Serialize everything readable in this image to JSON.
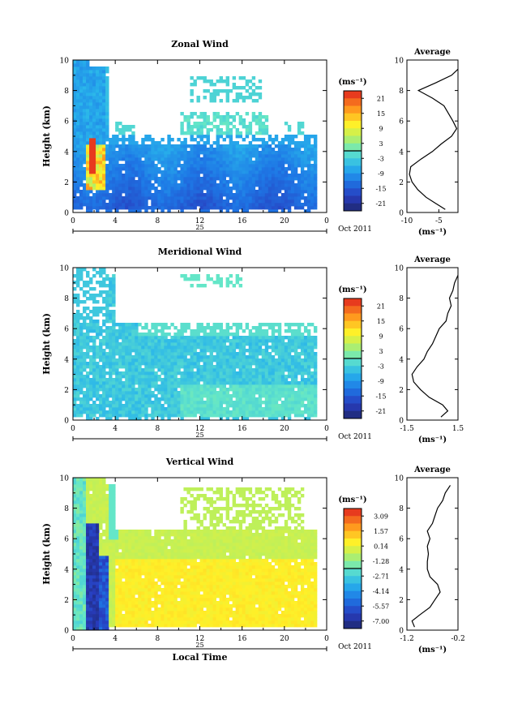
{
  "chart_data": [
    {
      "type": "heatmap",
      "title": "Zonal Wind",
      "xlabel": "",
      "ylabel": "Height (km)",
      "xlim": [
        0,
        24
      ],
      "ylim": [
        0,
        10
      ],
      "x_ticks": [
        "0",
        "4",
        "8",
        "12",
        "16",
        "20",
        "0"
      ],
      "y_ticks": [
        "0",
        "2",
        "4",
        "6",
        "8",
        "10"
      ],
      "date_day": "25",
      "date_label": "Oct 2011",
      "colorbar": {
        "unit": "(ms⁻¹)",
        "labels": [
          "21",
          "15",
          "9",
          "3",
          "-3",
          "-9",
          "-15",
          "-21"
        ],
        "min": -24,
        "max": 24
      },
      "profile": {
        "title": "Average",
        "xlabel": "(ms⁻¹)",
        "xlim": [
          -10,
          -2
        ],
        "x_ticks": [
          "-10",
          "-5"
        ],
        "y_ticks": [
          "0",
          "2",
          "4",
          "6",
          "8",
          "10"
        ],
        "heights": [
          0.2,
          0.6,
          1.0,
          1.5,
          2.0,
          2.5,
          3.0,
          3.5,
          4.0,
          4.5,
          5.0,
          5.5,
          6.0,
          6.5,
          7.0,
          7.5,
          8.0,
          8.5,
          9.0,
          9.4
        ],
        "values": [
          -4.0,
          -5.5,
          -7.0,
          -8.3,
          -9.2,
          -9.6,
          -9.4,
          -7.8,
          -6.0,
          -4.6,
          -3.0,
          -2.2,
          -2.8,
          -3.5,
          -4.2,
          -6.0,
          -8.2,
          -5.5,
          -3.0,
          -2.0
        ]
      }
    },
    {
      "type": "heatmap",
      "title": "Meridional Wind",
      "xlabel": "",
      "ylabel": "Height (km)",
      "xlim": [
        0,
        24
      ],
      "ylim": [
        0,
        10
      ],
      "x_ticks": [
        "0",
        "4",
        "8",
        "12",
        "16",
        "20",
        "0"
      ],
      "y_ticks": [
        "0",
        "2",
        "4",
        "6",
        "8",
        "10"
      ],
      "date_day": "25",
      "date_label": "Oct 2011",
      "colorbar": {
        "unit": "(ms⁻¹)",
        "labels": [
          "21",
          "15",
          "9",
          "3",
          "-3",
          "-9",
          "-15",
          "-21"
        ],
        "min": -24,
        "max": 24
      },
      "profile": {
        "title": "Average",
        "xlabel": "(ms⁻¹)",
        "xlim": [
          -1.5,
          1.5
        ],
        "x_ticks": [
          "-1.5",
          "1.5"
        ],
        "y_ticks": [
          "0",
          "2",
          "4",
          "6",
          "8",
          "10"
        ],
        "heights": [
          0.2,
          0.6,
          1.0,
          1.5,
          2.0,
          2.5,
          3.0,
          3.5,
          4.0,
          4.5,
          5.0,
          5.5,
          6.0,
          6.5,
          7.0,
          7.5,
          8.0,
          8.5,
          9.0,
          9.5
        ],
        "values": [
          0.5,
          0.9,
          0.6,
          -0.2,
          -0.7,
          -1.1,
          -1.2,
          -0.9,
          -0.5,
          -0.3,
          0.0,
          0.2,
          0.4,
          0.8,
          0.9,
          1.1,
          1.0,
          1.2,
          1.3,
          1.5
        ]
      }
    },
    {
      "type": "heatmap",
      "title": "Vertical Wind",
      "xlabel": "Local Time",
      "ylabel": "Height (km)",
      "xlim": [
        0,
        24
      ],
      "ylim": [
        0,
        10
      ],
      "x_ticks": [
        "0",
        "4",
        "8",
        "12",
        "16",
        "20",
        "0"
      ],
      "y_ticks": [
        "0",
        "2",
        "4",
        "6",
        "8",
        "10"
      ],
      "date_day": "25",
      "date_label": "Oct 2011",
      "colorbar": {
        "unit": "(ms⁻¹)",
        "labels": [
          "3.09",
          "1.57",
          "0.14",
          "-1.28",
          "-2.71",
          "-4.14",
          "-5.57",
          "-7.00"
        ],
        "min": -7.7,
        "max": 3.8
      },
      "profile": {
        "title": "Average",
        "xlabel": "(ms⁻¹)",
        "xlim": [
          -1.2,
          -0.2
        ],
        "x_ticks": [
          "-1.2",
          "-0.2"
        ],
        "y_ticks": [
          "0",
          "2",
          "4",
          "6",
          "8",
          "10"
        ],
        "heights": [
          0.2,
          0.6,
          1.0,
          1.5,
          2.0,
          2.5,
          3.0,
          3.5,
          4.0,
          4.5,
          5.0,
          5.5,
          6.0,
          6.5,
          7.0,
          7.5,
          8.0,
          8.5,
          9.0,
          9.5
        ],
        "values": [
          -1.05,
          -1.1,
          -0.95,
          -0.75,
          -0.65,
          -0.55,
          -0.6,
          -0.75,
          -0.8,
          -0.8,
          -0.78,
          -0.8,
          -0.75,
          -0.8,
          -0.7,
          -0.65,
          -0.6,
          -0.5,
          -0.45,
          -0.35
        ]
      }
    }
  ]
}
